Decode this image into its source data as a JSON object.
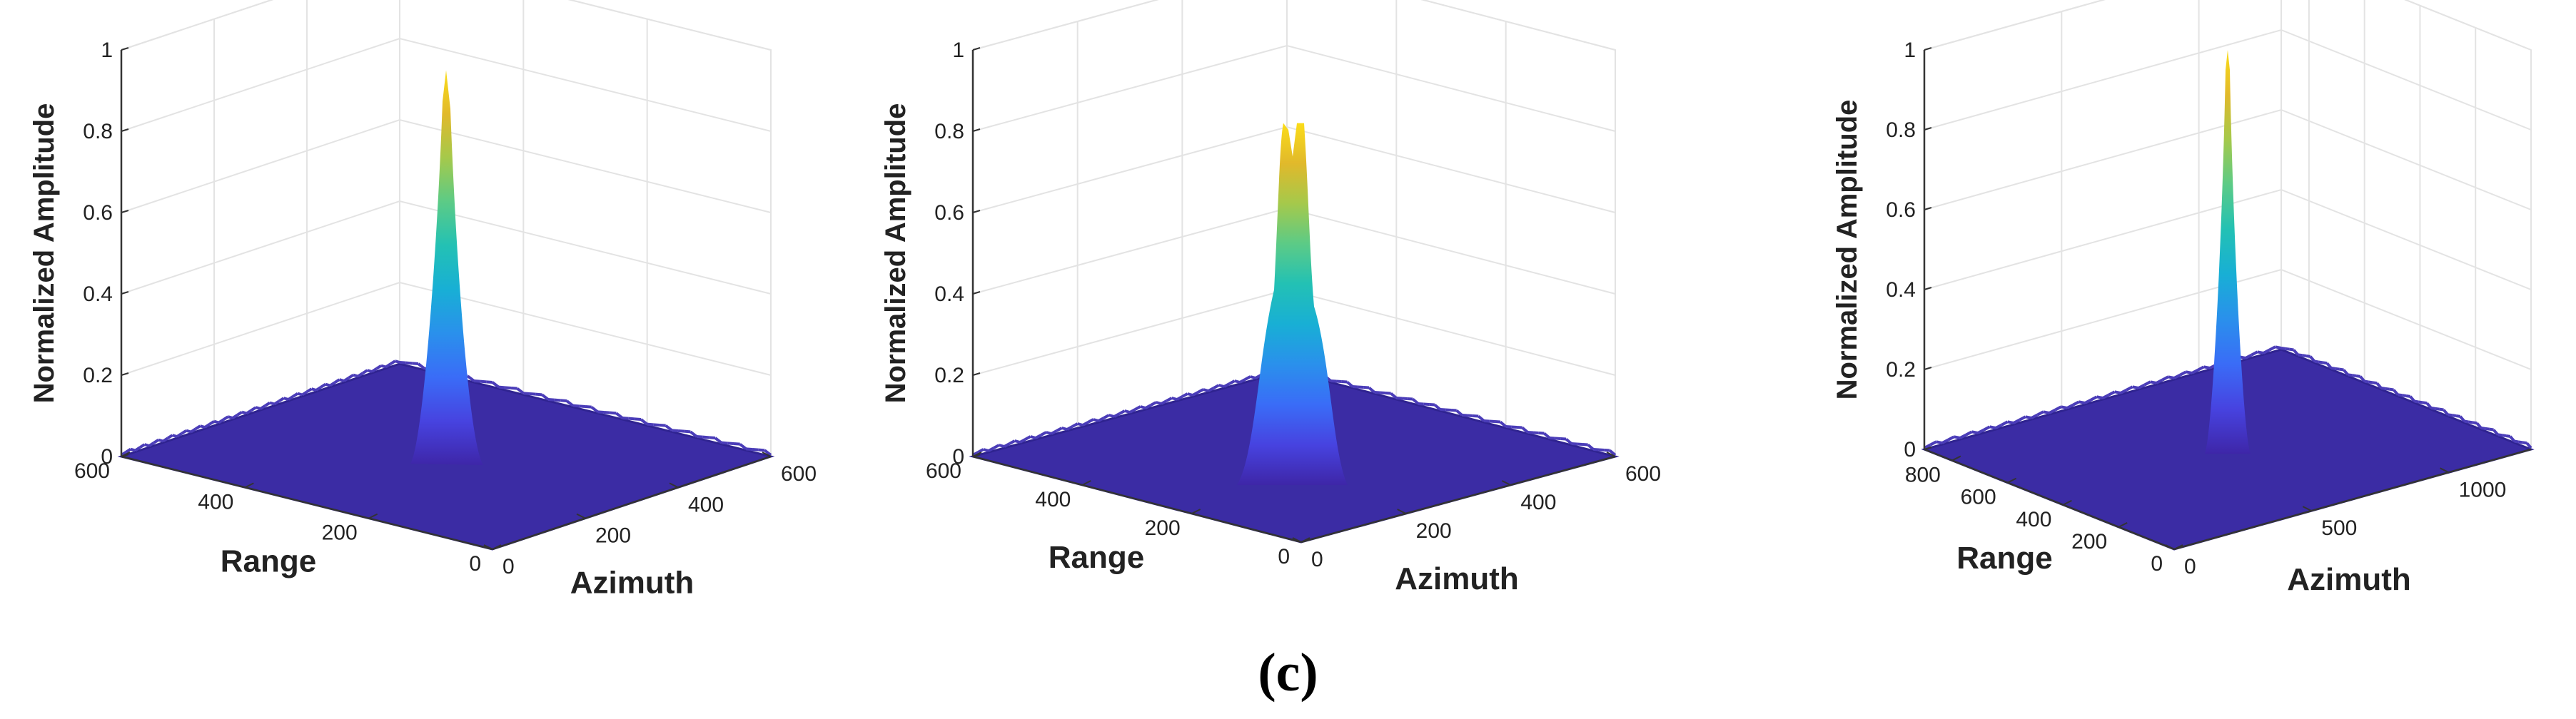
{
  "figure": {
    "label": "(c)"
  },
  "colors": {
    "floor": "#3b2ca4",
    "floor_edge": "#2f2390",
    "grid": "#e3e3e3",
    "axis": "#333333",
    "text": "#222222"
  },
  "colormap": [
    "#3e26a8",
    "#4743e0",
    "#3a6cf7",
    "#2a90ec",
    "#18afd5",
    "#23c1b4",
    "#5ccb86",
    "#a5c94b",
    "#e1b92b",
    "#fbdc19"
  ],
  "chart_data": [
    {
      "type": "surface3d",
      "title": "",
      "zlabel": "Normalized Amplitude",
      "range_label": "Range",
      "azimuth_label": "Azimuth",
      "range_lim": [
        0,
        600
      ],
      "azimuth_lim": [
        0,
        600
      ],
      "zlim": [
        0,
        1
      ],
      "range_ticks": [
        "0",
        "200",
        "400",
        "600"
      ],
      "azimuth_ticks": [
        "0",
        "200",
        "400",
        "600"
      ],
      "z_ticks": [
        "0",
        "0.2",
        "0.4",
        "0.6",
        "0.8",
        "1"
      ],
      "peak": {
        "range": 300,
        "azimuth": 300,
        "amplitude": 0.95,
        "shape": "single"
      }
    },
    {
      "type": "surface3d",
      "title": "",
      "zlabel": "Normalized Amplitude",
      "range_label": "Range",
      "azimuth_label": "Azimuth",
      "range_lim": [
        0,
        600
      ],
      "azimuth_lim": [
        0,
        600
      ],
      "zlim": [
        0,
        1
      ],
      "range_ticks": [
        "0",
        "200",
        "400",
        "600"
      ],
      "azimuth_ticks": [
        "0",
        "200",
        "400",
        "600"
      ],
      "z_ticks": [
        "0",
        "0.2",
        "0.4",
        "0.6",
        "0.8",
        "1"
      ],
      "peak": {
        "range": 300,
        "azimuth": 300,
        "amplitude": 0.82,
        "shape": "double"
      }
    },
    {
      "type": "surface3d",
      "title": "",
      "zlabel": "Normalized Amplitude",
      "range_label": "Range",
      "azimuth_label": "Azimuth",
      "range_lim": [
        0,
        900
      ],
      "azimuth_lim": [
        0,
        1300
      ],
      "zlim": [
        0,
        1
      ],
      "range_ticks": [
        "0",
        "200",
        "400",
        "600",
        "800"
      ],
      "azimuth_ticks": [
        "0",
        "500",
        "1000"
      ],
      "z_ticks": [
        "0",
        "0.2",
        "0.4",
        "0.6",
        "0.8",
        "1"
      ],
      "peak": {
        "range": 450,
        "azimuth": 650,
        "amplitude": 1.0,
        "shape": "narrow"
      }
    }
  ]
}
